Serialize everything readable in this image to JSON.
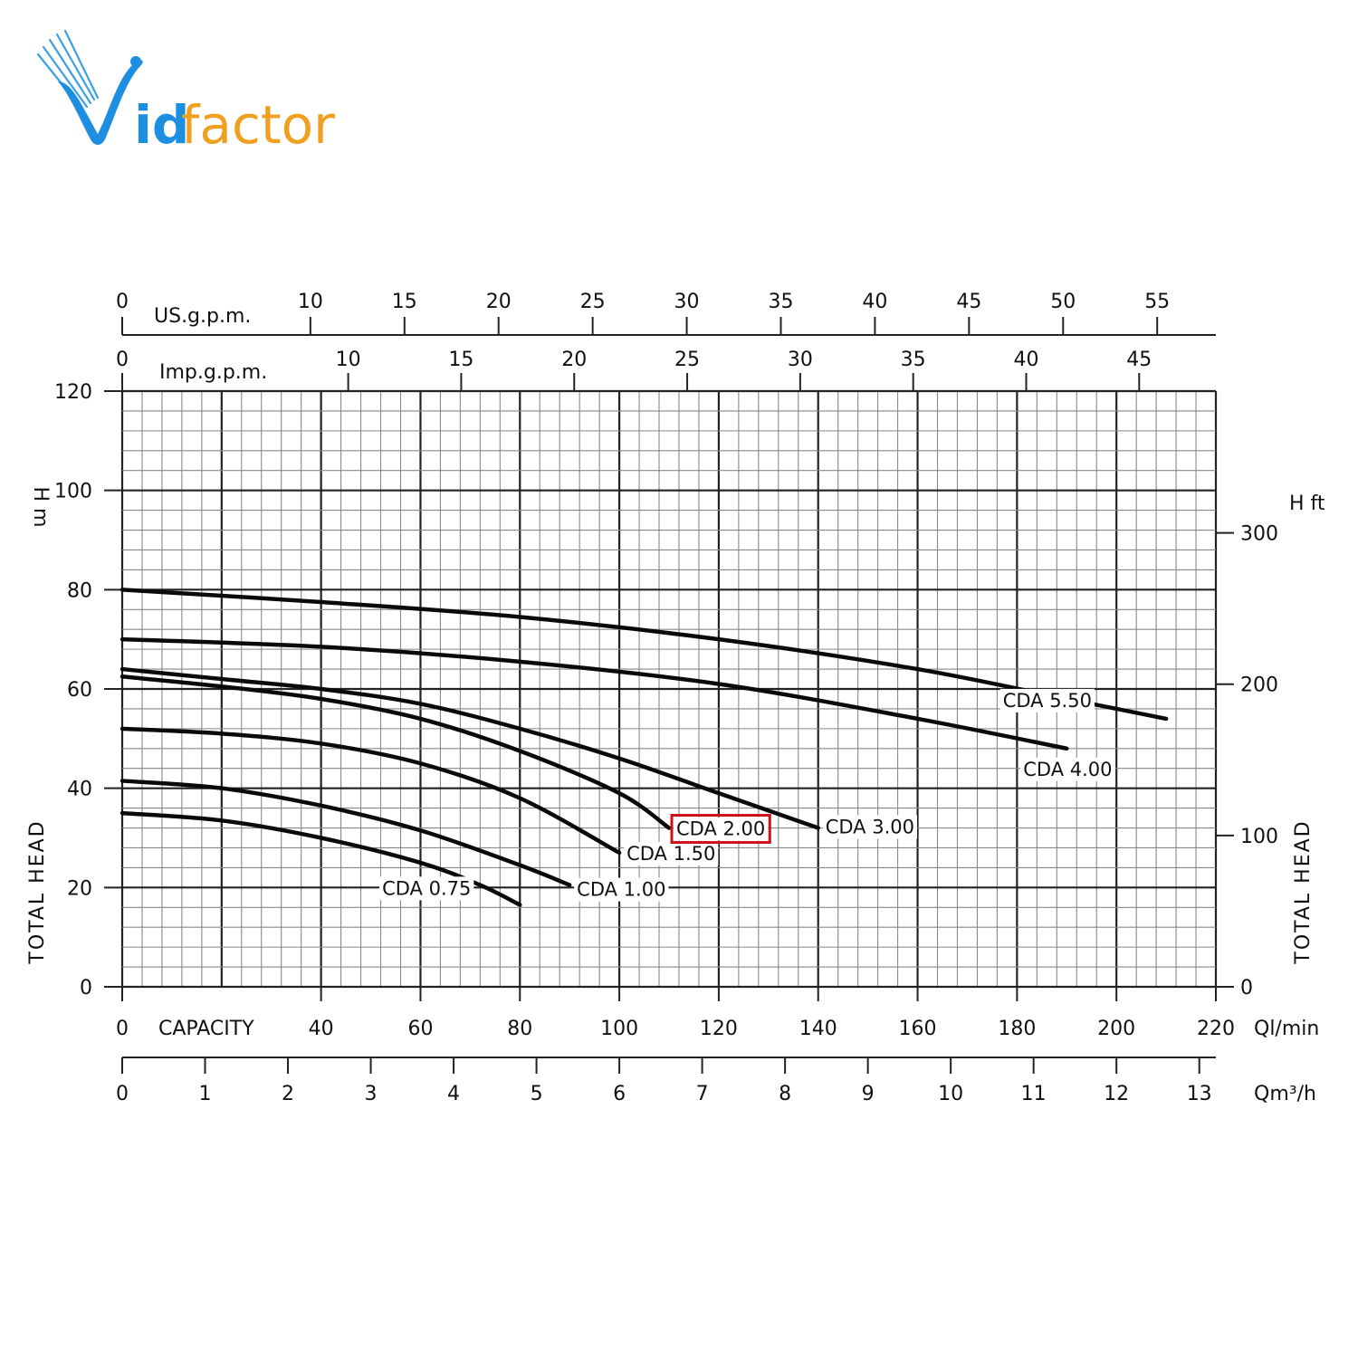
{
  "brand": {
    "logo_text_id": "id",
    "logo_text_factor": "factor",
    "logo_initial": "V",
    "blue": "#1e8fe0",
    "orange": "#f0a020"
  },
  "chart_data": {
    "type": "line",
    "x_axis": {
      "label": "CAPACITY",
      "unit": "Ql/min",
      "range": [
        0,
        220
      ],
      "ticks": [
        0,
        40,
        60,
        80,
        100,
        120,
        140,
        160,
        180,
        200,
        220
      ]
    },
    "y_axis_left": {
      "label": "TOTAL HEAD",
      "unit": "H m",
      "range": [
        0,
        120
      ],
      "ticks": [
        0,
        20,
        40,
        60,
        80,
        100,
        120
      ]
    },
    "y_axis_right": {
      "label": "TOTAL HEAD",
      "unit": "H ft",
      "ticks": [
        0,
        100,
        200,
        300
      ]
    },
    "top_axis_usgpm": {
      "label": "US.g.p.m.",
      "ticks": [
        0,
        10,
        15,
        20,
        25,
        30,
        35,
        40,
        45,
        50,
        55
      ]
    },
    "top_axis_impgpm": {
      "label": "Imp.g.p.m.",
      "ticks": [
        0,
        10,
        15,
        20,
        25,
        30,
        35,
        40,
        45
      ]
    },
    "bottom_axis_m3h": {
      "unit": "Qm³/h",
      "ticks": [
        0,
        1,
        2,
        3,
        4,
        5,
        6,
        7,
        8,
        9,
        10,
        11,
        12,
        13
      ]
    },
    "grid": true,
    "highlighted_series": "CDA 2.00",
    "highlight_color": "#d0101a",
    "series": [
      {
        "name": "CDA 0.75",
        "points": [
          [
            0,
            35
          ],
          [
            20,
            33.5
          ],
          [
            40,
            30
          ],
          [
            60,
            25
          ],
          [
            72,
            20.5
          ],
          [
            80,
            16.5
          ]
        ]
      },
      {
        "name": "CDA 1.00",
        "points": [
          [
            0,
            41.5
          ],
          [
            20,
            40
          ],
          [
            40,
            36.5
          ],
          [
            60,
            31.5
          ],
          [
            80,
            24.5
          ],
          [
            90,
            20.5
          ]
        ]
      },
      {
        "name": "CDA 1.50",
        "points": [
          [
            0,
            52
          ],
          [
            20,
            51
          ],
          [
            40,
            49
          ],
          [
            60,
            45
          ],
          [
            80,
            38
          ],
          [
            100,
            27
          ]
        ]
      },
      {
        "name": "CDA 2.00",
        "points": [
          [
            0,
            62.5
          ],
          [
            20,
            60.5
          ],
          [
            40,
            58
          ],
          [
            60,
            54
          ],
          [
            80,
            47.5
          ],
          [
            100,
            39
          ],
          [
            110,
            32
          ]
        ]
      },
      {
        "name": "CDA 3.00",
        "points": [
          [
            0,
            64
          ],
          [
            20,
            62
          ],
          [
            40,
            60
          ],
          [
            60,
            57
          ],
          [
            80,
            52
          ],
          [
            100,
            46
          ],
          [
            120,
            39
          ],
          [
            140,
            32
          ]
        ]
      },
      {
        "name": "CDA 4.00",
        "points": [
          [
            0,
            70
          ],
          [
            40,
            68.5
          ],
          [
            80,
            65.5
          ],
          [
            120,
            61
          ],
          [
            160,
            54
          ],
          [
            190,
            48
          ]
        ]
      },
      {
        "name": "CDA 5.50",
        "points": [
          [
            0,
            80
          ],
          [
            40,
            77.5
          ],
          [
            80,
            74.5
          ],
          [
            120,
            70
          ],
          [
            160,
            64
          ],
          [
            190,
            58
          ],
          [
            210,
            54
          ]
        ]
      }
    ]
  }
}
